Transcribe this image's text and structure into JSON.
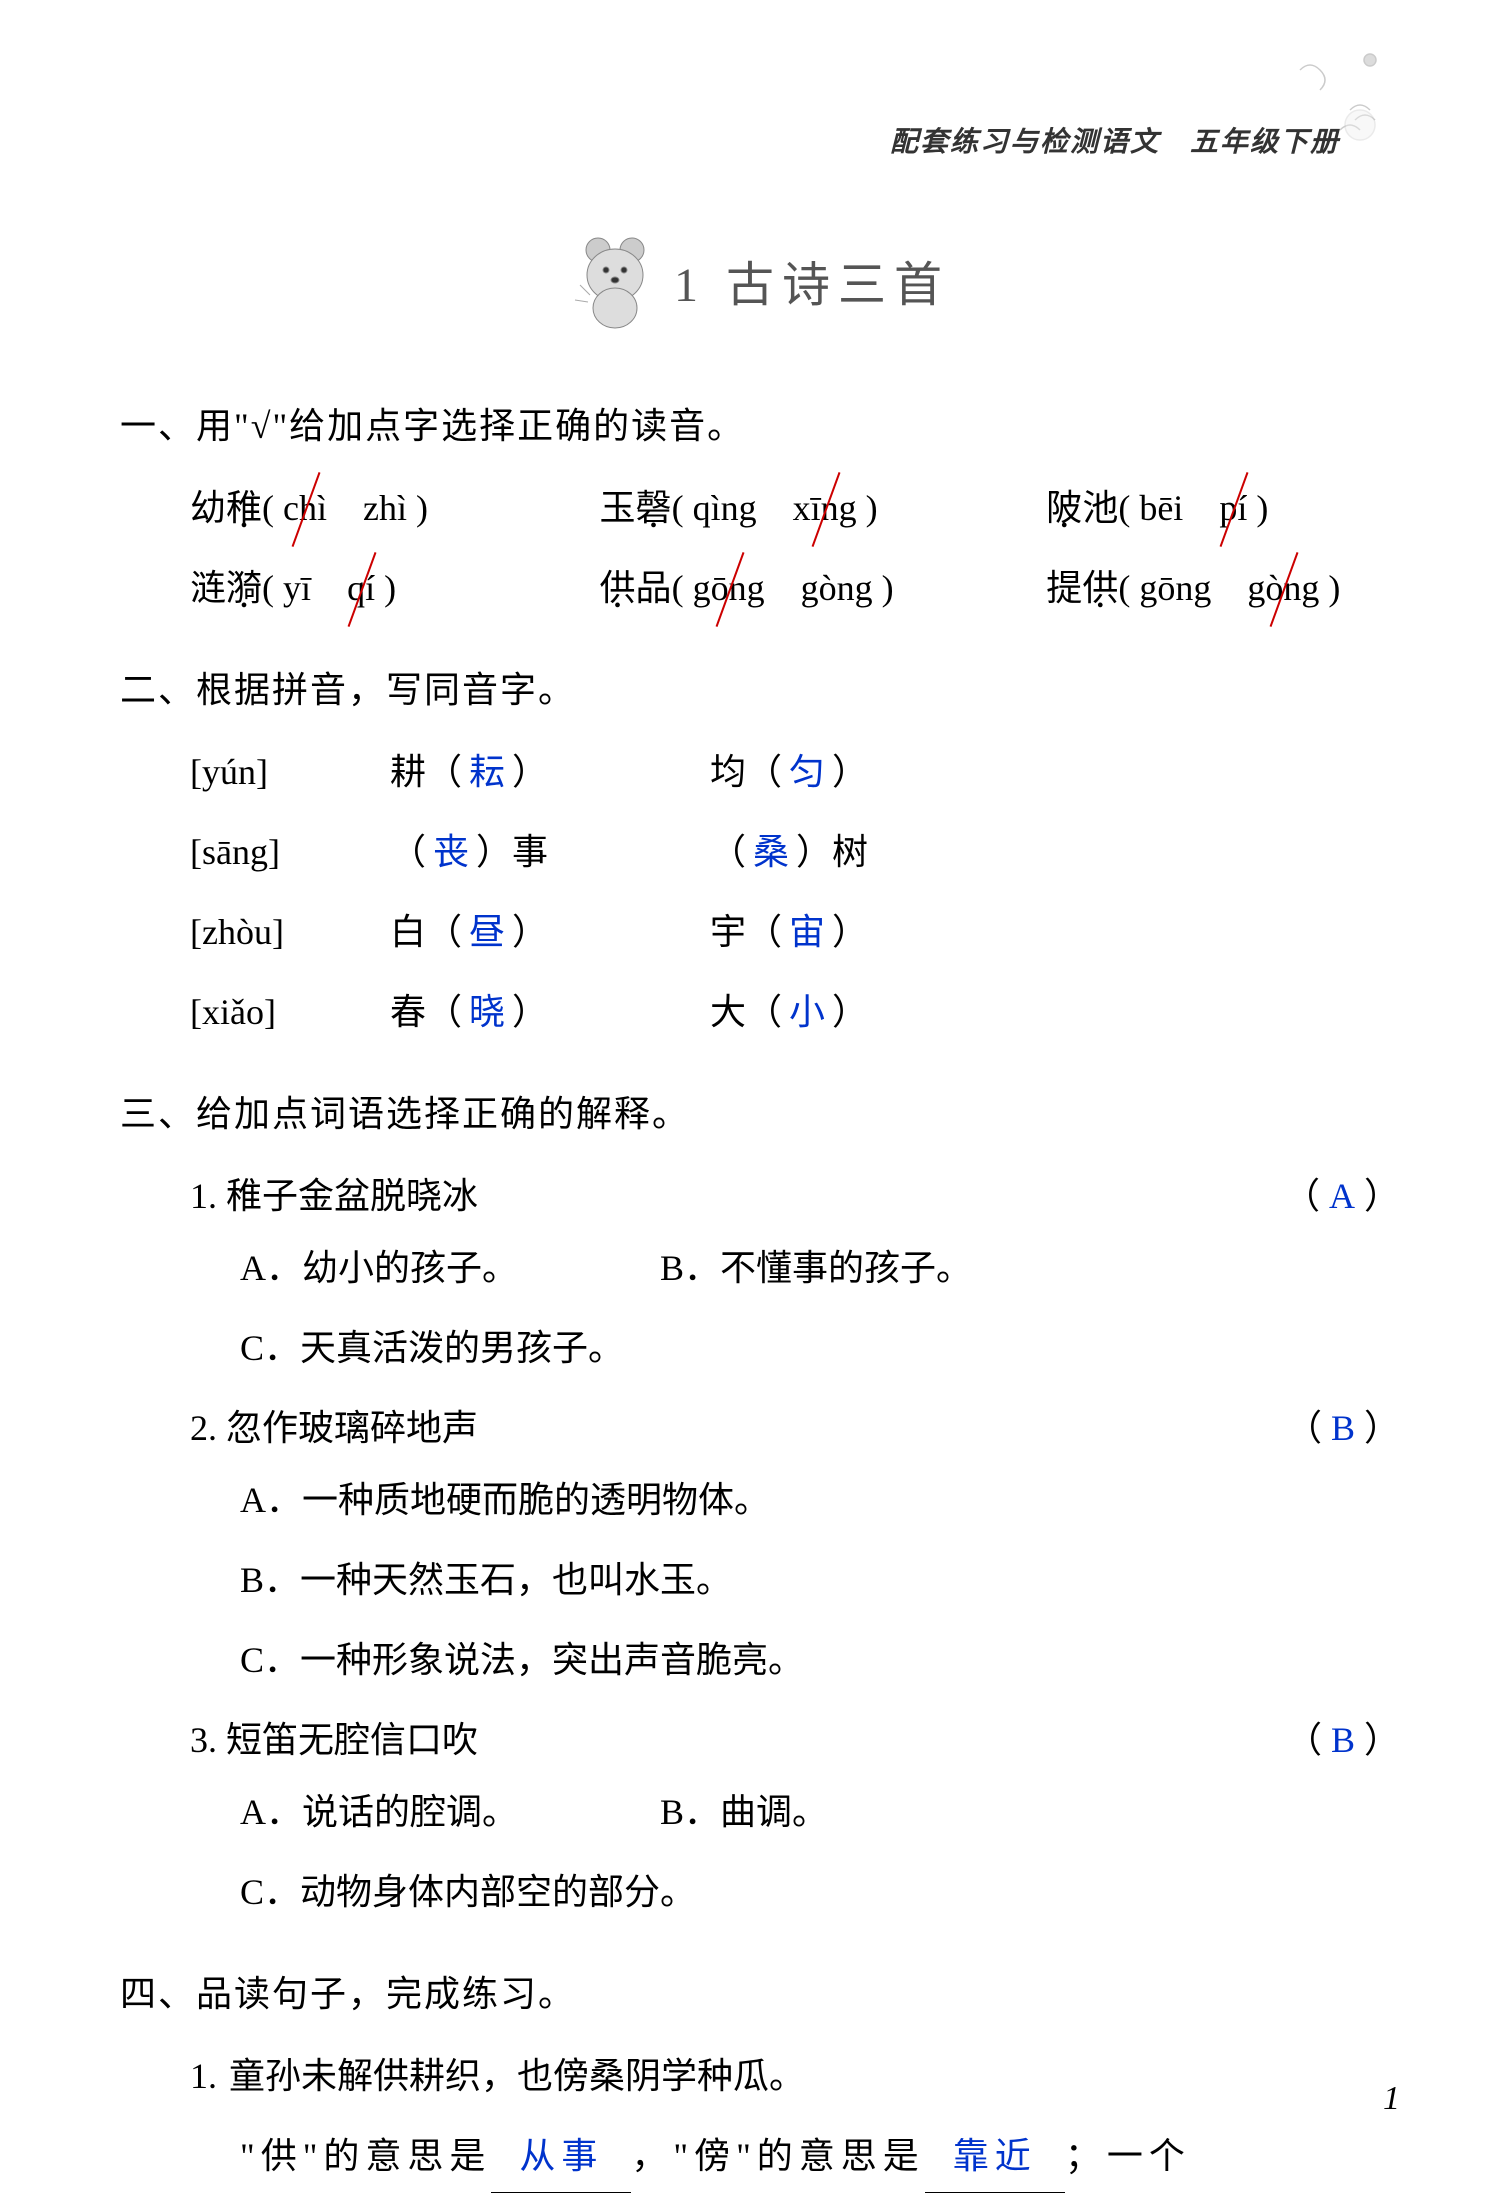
{
  "header": {
    "subtitle": "配套练习与检测语文　五年级下册"
  },
  "title": {
    "number": "1",
    "text": "古诗三首"
  },
  "colors": {
    "answer": "#0033cc",
    "strike": "#cc0000",
    "text": "#000000",
    "background": "#ffffff",
    "title_text": "#555555"
  },
  "section1": {
    "header": "一、用\"√\"给加点字选择正确的读音。",
    "rows": [
      [
        {
          "word": "幼稚",
          "dot_idx": 1,
          "p1": "chì",
          "p2": "zhì",
          "correct": 2
        },
        {
          "word": "玉磬",
          "dot_idx": 1,
          "p1": "qìng",
          "p2": "xīng",
          "correct": 1
        },
        {
          "word": "陂池",
          "dot_idx": 0,
          "p1": "bēi",
          "p2": "pí",
          "correct": 1
        }
      ],
      [
        {
          "word": "涟漪",
          "dot_idx": 1,
          "p1": "yī",
          "p2": "qí",
          "correct": 1
        },
        {
          "word": "供品",
          "dot_idx": 0,
          "p1": "gōng",
          "p2": "gòng",
          "correct": 2
        },
        {
          "word": "提供",
          "dot_idx": 1,
          "p1": "gōng",
          "p2": "gòng",
          "correct": 1
        }
      ]
    ]
  },
  "section2": {
    "header": "二、根据拼音，写同音字。",
    "rows": [
      {
        "pinyin": "[yún]",
        "c1_pre": "耕",
        "c1_ans": "耘",
        "c1_post": "",
        "c2_pre": "均",
        "c2_ans": "匀",
        "c2_post": ""
      },
      {
        "pinyin": "[sāng]",
        "c1_pre": "",
        "c1_ans": "丧",
        "c1_post": "事",
        "c2_pre": "",
        "c2_ans": "桑",
        "c2_post": "树"
      },
      {
        "pinyin": "[zhòu]",
        "c1_pre": "白",
        "c1_ans": "昼",
        "c1_post": "",
        "c2_pre": "宇",
        "c2_ans": "宙",
        "c2_post": ""
      },
      {
        "pinyin": "[xiǎo]",
        "c1_pre": "春",
        "c1_ans": "晓",
        "c1_post": "",
        "c2_pre": "大",
        "c2_ans": "小",
        "c2_post": ""
      }
    ]
  },
  "section3": {
    "header": "三、给加点词语选择正确的解释。",
    "items": [
      {
        "num": "1.",
        "stem": "稚子金盆脱晓冰",
        "answer": "A",
        "opts": [
          "A．幼小的孩子。",
          "B．不懂事的孩子。",
          "C．天真活泼的男孩子。"
        ],
        "opt_layout": [
          [
            0,
            1
          ],
          [
            2
          ]
        ]
      },
      {
        "num": "2.",
        "stem": "忽作玻璃碎地声",
        "answer": "B",
        "opts": [
          "A．一种质地硬而脆的透明物体。",
          "B．一种天然玉石，也叫水玉。",
          "C．一种形象说法，突出声音脆亮。"
        ],
        "opt_layout": [
          [
            0
          ],
          [
            1
          ],
          [
            2
          ]
        ]
      },
      {
        "num": "3.",
        "stem": "短笛无腔信口吹",
        "answer": "B",
        "opts": [
          "A．说话的腔调。",
          "B．曲调。",
          "C．动物身体内部空的部分。"
        ],
        "opt_layout": [
          [
            0,
            1
          ],
          [
            2
          ]
        ]
      }
    ]
  },
  "section4": {
    "header": "四、品读句子，完成练习。",
    "item1": {
      "num": "1.",
      "stem": "童孙未解供耕织，也傍桑阴学种瓜。",
      "line2_p1": "\"供\"的意思是",
      "ans1": "从事",
      "line2_p2": "，\"傍\"的意思是",
      "ans2": "靠近",
      "line2_p3": "；一个"
    }
  },
  "page_number": "1"
}
